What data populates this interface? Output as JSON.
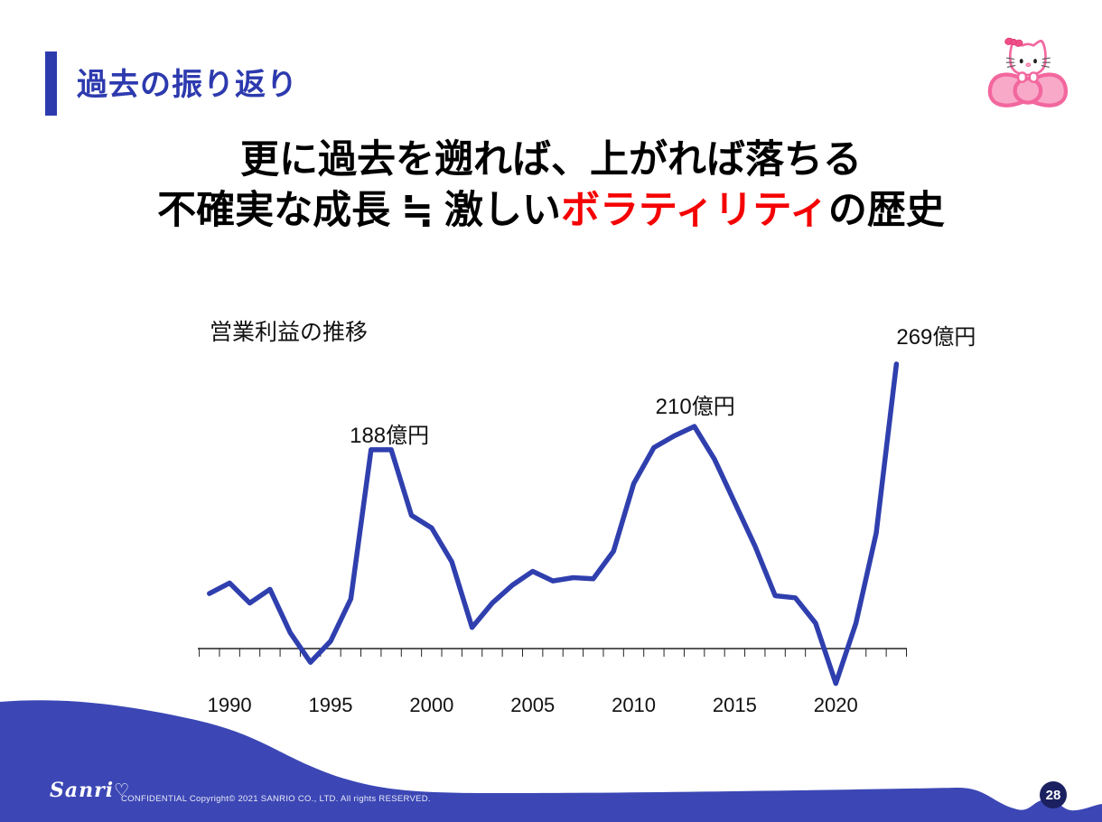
{
  "colors": {
    "accent_blue": "#2d3aae",
    "line_blue": "#2f3fae",
    "wave_blue": "#3c47b5",
    "highlight_red": "#f40000",
    "badge_navy": "#1b2160",
    "kitty_pink_outline": "#f2679e",
    "kitty_pink_fill": "#f8a9c8"
  },
  "header": {
    "title": "過去の振り返り"
  },
  "headline": {
    "line1": "更に過去を遡れば、上がれば落ちる",
    "line2_prefix": "不確実な成長 ≒ 激しい",
    "line2_highlight": "ボラティリティ",
    "line2_suffix": "の歴史"
  },
  "chart_data": {
    "type": "line",
    "title": "営業利益の推移",
    "unit": "億円",
    "x": [
      1989,
      1990,
      1991,
      1992,
      1993,
      1994,
      1995,
      1996,
      1997,
      1998,
      1999,
      2000,
      2001,
      2002,
      2003,
      2004,
      2005,
      2006,
      2007,
      2008,
      2009,
      2010,
      2011,
      2012,
      2013,
      2014,
      2015,
      2016,
      2017,
      2018,
      2019,
      2020,
      2021,
      2022,
      2023
    ],
    "values": [
      52,
      62,
      43,
      56,
      15,
      -13,
      7,
      47,
      188,
      188,
      126,
      114,
      82,
      20,
      43,
      60,
      73,
      64,
      67,
      66,
      92,
      156,
      190,
      201,
      210,
      179,
      138,
      97,
      50,
      48,
      24,
      -33,
      24,
      109,
      269
    ],
    "xticks": [
      1990,
      1995,
      2000,
      2005,
      2010,
      2015,
      2020
    ],
    "annotations": [
      {
        "text": "188億円",
        "year": 1998,
        "value": 188
      },
      {
        "text": "210億円",
        "year": 2013,
        "value": 210
      },
      {
        "text": "269億円",
        "year": 2023,
        "value": 269
      }
    ],
    "ylim": [
      -50,
      290
    ],
    "grid": false,
    "legend": false,
    "line_color": "#2f3fae"
  },
  "footer": {
    "brand_text": "Sanri",
    "brand_heart": "♡",
    "confidential": "CONFIDENTIAL Copyright© 2021 SANRIO CO., LTD. All rights RESERVED.",
    "page_number": "28"
  }
}
